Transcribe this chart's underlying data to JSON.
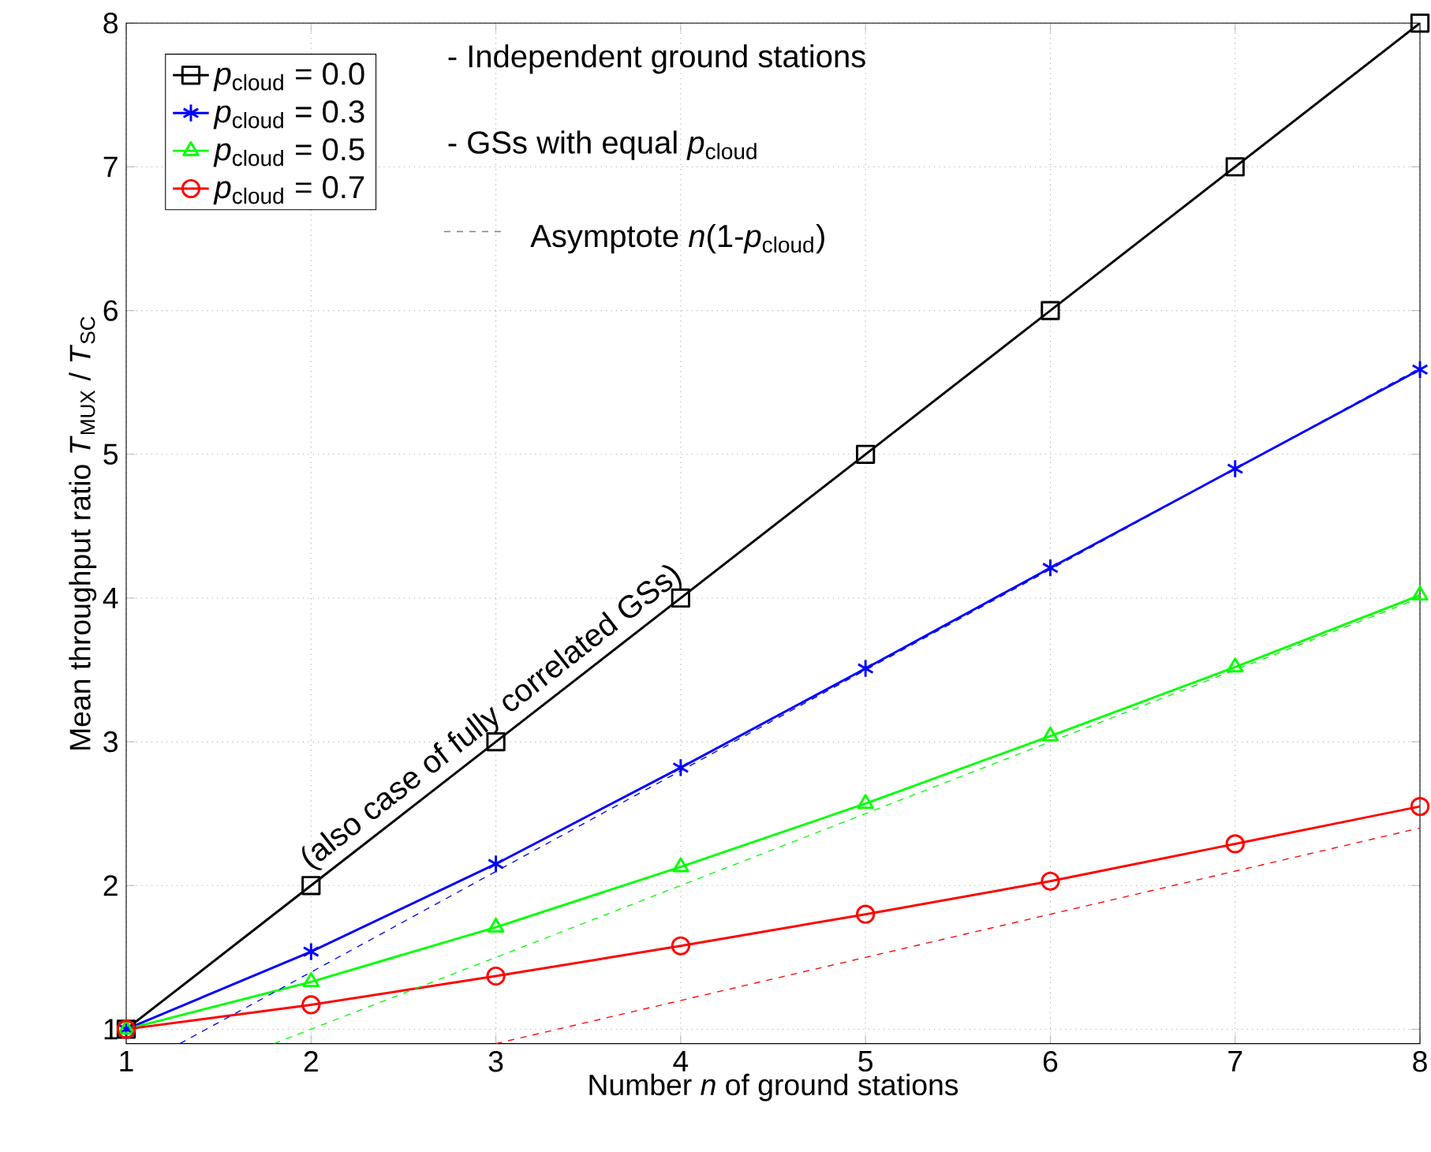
{
  "chart_data": {
    "type": "line",
    "xlabel": "Number *n* of ground stations",
    "ylabel": "Mean throughput ratio     *T*$_{MUX}$ / *T*$_{SC}$",
    "x": [
      1,
      2,
      3,
      4,
      5,
      6,
      7,
      8
    ],
    "series": [
      {
        "name": "*p*$_{cloud}$ = 0.0",
        "color": "#000000",
        "marker": "square",
        "values": [
          1,
          2,
          3,
          4,
          5,
          6,
          7,
          8
        ]
      },
      {
        "name": "*p*$_{cloud}$ = 0.3",
        "color": "#0000ff",
        "marker": "cross",
        "values": [
          1,
          1.54,
          2.15,
          2.82,
          3.51,
          4.21,
          4.9,
          5.59
        ]
      },
      {
        "name": "*p*$_{cloud}$ = 0.5",
        "color": "#00ff00",
        "marker": "triangle",
        "values": [
          1,
          1.33,
          1.71,
          2.13,
          2.57,
          3.04,
          3.52,
          4.02
        ]
      },
      {
        "name": "*p*$_{cloud}$ = 0.7",
        "color": "#ff0000",
        "marker": "circle",
        "values": [
          1,
          1.17,
          1.37,
          1.58,
          1.8,
          2.03,
          2.29,
          2.55
        ]
      },
      {
        "color": "#0000ff",
        "marker": "none",
        "line_style": "dashed",
        "x": [
          1.29,
          8
        ],
        "values": [
          0.9,
          5.6
        ]
      },
      {
        "color": "#00ff00",
        "marker": "none",
        "line_style": "dashed",
        "x": [
          1.8,
          8
        ],
        "values": [
          0.9,
          4.0
        ]
      },
      {
        "color": "#ff0000",
        "marker": "none",
        "line_style": "dashed",
        "x": [
          3,
          8
        ],
        "values": [
          0.9,
          2.4
        ]
      }
    ],
    "xlim": [
      1,
      8
    ],
    "ylim": [
      0.9,
      8
    ],
    "xticks": [
      1,
      2,
      3,
      4,
      5,
      6,
      7,
      8
    ],
    "yticks": [
      1,
      2,
      3,
      4,
      5,
      6,
      7,
      8
    ],
    "grid": true,
    "legend": "top left",
    "annotations": [
      "- Independent ground stations",
      "- GSs with equal *p*$_{cloud}$",
      "Asymptote *n*(1-*p*$_{cloud}$)",
      "(also case of fully correlated GSs)"
    ]
  }
}
